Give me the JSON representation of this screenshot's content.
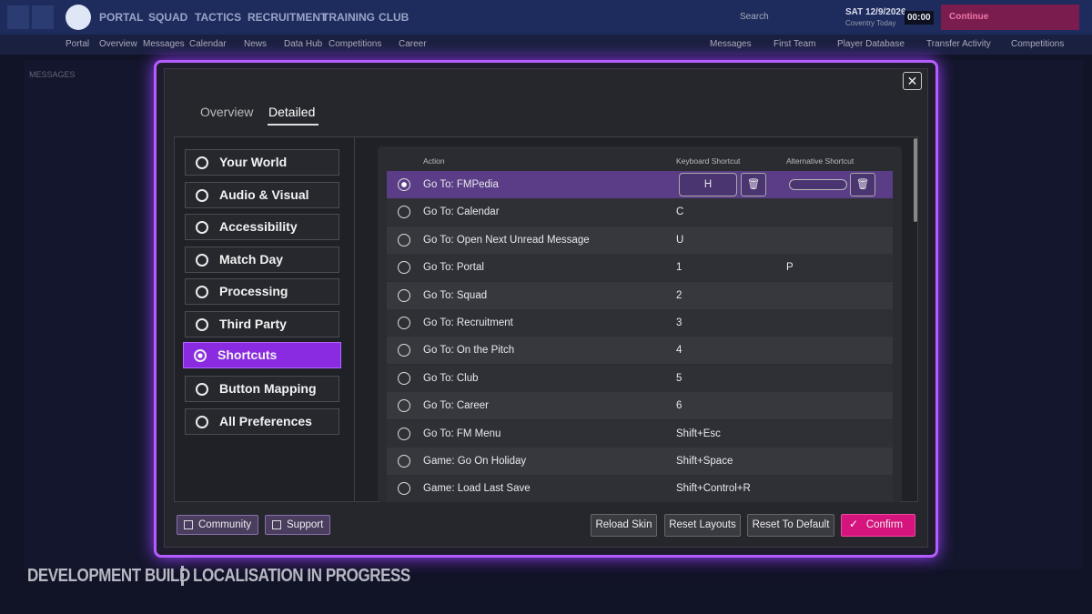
{
  "topbar": {
    "nav": [
      "PORTAL",
      "SQUAD",
      "TACTICS",
      "RECRUITMENT",
      "TRAINING",
      "CLUB"
    ],
    "search": "Search",
    "date": "SAT 12/9/2026",
    "date_sub": "Coventry  Today",
    "time": "00:00",
    "continue": "Continue"
  },
  "subnav": {
    "left": [
      "Portal",
      "Overview",
      "Messages",
      "Calendar",
      "News",
      "Data Hub",
      "Competitions",
      "Career"
    ],
    "right": [
      "Messages",
      "First Team",
      "Player Database",
      "Transfer Activity",
      "Competitions"
    ]
  },
  "background": {
    "messages_title": "MESSAGES"
  },
  "dialog": {
    "tabs": [
      "Overview",
      "Detailed"
    ],
    "categories": [
      "Your World",
      "Audio & Visual",
      "Accessibility",
      "Match Day",
      "Processing",
      "Third Party",
      "Shortcuts",
      "Button Mapping",
      "All Preferences"
    ],
    "table": {
      "headers": [
        "Action",
        "Keyboard Shortcut",
        "Alternative Shortcut"
      ],
      "rows": [
        {
          "action": "Go To: FMPedia",
          "key": "H"
        },
        {
          "action": "Go To: Calendar",
          "key": "C"
        },
        {
          "action": "Go To: Open Next Unread Message",
          "key": "U"
        },
        {
          "action": "Go To: Portal",
          "key": "1",
          "alt": "P"
        },
        {
          "action": "Go To: Squad",
          "key": "2"
        },
        {
          "action": "Go To: Recruitment",
          "key": "3"
        },
        {
          "action": "Go To: On the Pitch",
          "key": "4"
        },
        {
          "action": "Go To: Club",
          "key": "5"
        },
        {
          "action": "Go To: Career",
          "key": "6"
        },
        {
          "action": "Go To: FM Menu",
          "key": "Shift+Esc"
        },
        {
          "action": "Game: Go On Holiday",
          "key": "Shift+Space"
        },
        {
          "action": "Game: Load Last Save",
          "key": "Shift+Control+R"
        }
      ]
    },
    "links": [
      "Community",
      "Support"
    ],
    "buttons": [
      "Reload Skin",
      "Reset Layouts",
      "Reset To Default",
      "Confirm"
    ]
  },
  "watermark": [
    "DEVELOPMENT BUILD",
    "LOCALISATION IN PROGRESS"
  ]
}
